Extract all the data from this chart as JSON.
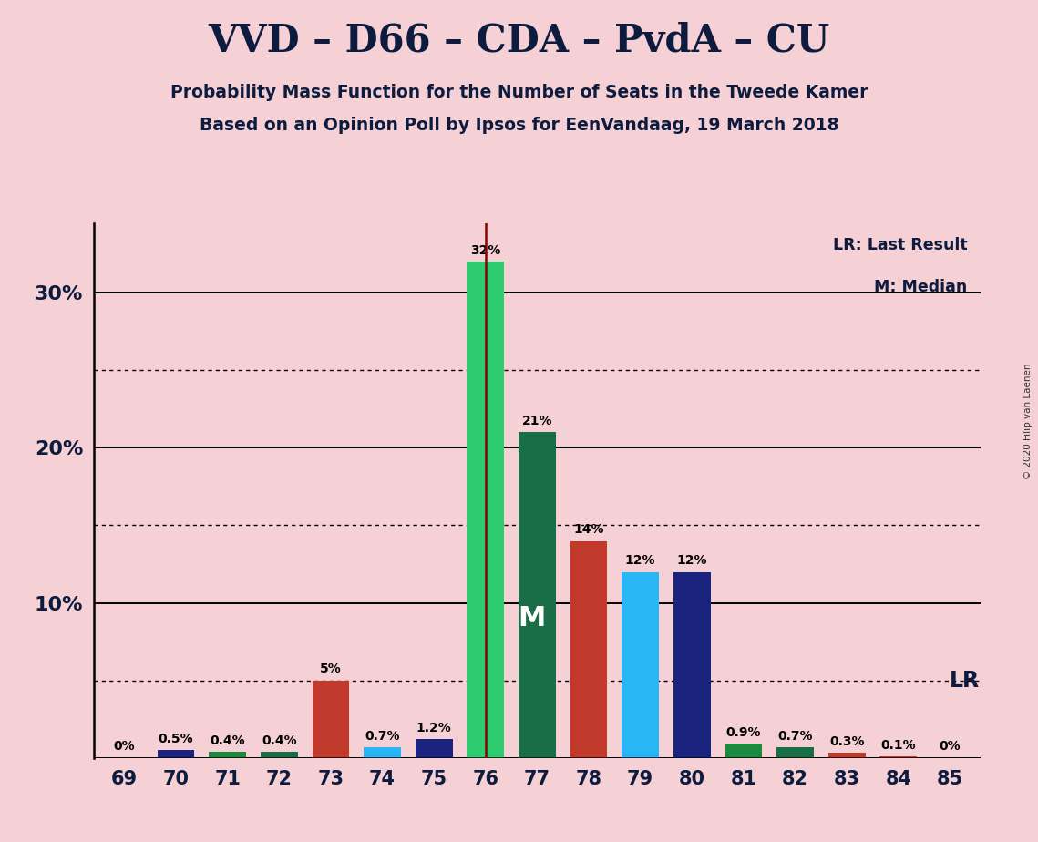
{
  "title": "VVD – D66 – CDA – PvdA – CU",
  "subtitle1": "Probability Mass Function for the Number of Seats in the Tweede Kamer",
  "subtitle2": "Based on an Opinion Poll by Ipsos for EenVandaag, 19 March 2018",
  "copyright": "© 2020 Filip van Laenen",
  "background_color": "#f5d0d5",
  "seats": [
    69,
    70,
    71,
    72,
    73,
    74,
    75,
    76,
    77,
    78,
    79,
    80,
    81,
    82,
    83,
    84,
    85
  ],
  "probabilities": [
    0.0,
    0.5,
    0.4,
    0.4,
    5.0,
    0.7,
    1.2,
    32.0,
    21.0,
    14.0,
    12.0,
    12.0,
    0.9,
    0.7,
    0.3,
    0.1,
    0.0
  ],
  "bar_colors": [
    "#c0392b",
    "#1a237e",
    "#1b8a3e",
    "#1a6e47",
    "#c0392b",
    "#29b6f6",
    "#1a237e",
    "#2ecc71",
    "#1a6e47",
    "#c0392b",
    "#29b6f6",
    "#1a237e",
    "#1b8a3e",
    "#1a6e47",
    "#c0392b",
    "#c0392b",
    "#c0392b"
  ],
  "lr_seat": 76,
  "median_seat": 77,
  "legend_lr": "LR: Last Result",
  "legend_m": "M: Median",
  "solid_yticks": [
    0,
    10,
    20,
    30
  ],
  "dotted_yticks": [
    5,
    15,
    25
  ],
  "ytick_positions": [
    10,
    20,
    30
  ],
  "ytick_labels": [
    "10%",
    "20%",
    "30%"
  ],
  "ylim_max": 34.5,
  "bar_width": 0.72,
  "lr_line_color": "#8b0000",
  "title_color": "#0d1b3e",
  "text_color": "#0d1b3e"
}
